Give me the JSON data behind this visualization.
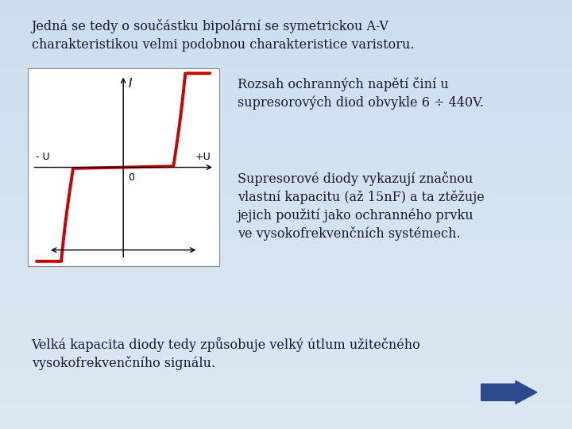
{
  "bg_color": "#b8d4e8",
  "title_text": "Jedná se tedy o součástku bipolární se symetrickou A-V\ncharakteristikou velmi podobnou charakteristice varistoru.",
  "text1_line1": "Rozsah ochranných napětí činí u",
  "text1_line2": "supresorových diod obvykle 6 ÷ 440V.",
  "text2_line1": "Supresorové diody vykazují značnou",
  "text2_line2": "vlastní kapacitu (až 15nF) a ta ztěžuje",
  "text2_line3": "jejich použití jako ochranného prvku",
  "text2_line4": "ve vysokofrekvenčních systémech.",
  "text3_line1": "Velká kapacita diody tedy způsobuje velký útlum užitečného",
  "text3_line2": "vysokofrekvenčního signálu.",
  "curve_color": "#cc0000",
  "axis_color": "#000000",
  "text_color": "#1a1a2e",
  "arrow_color": "#2b4a8b",
  "graph_bg": "#f0f0f0"
}
